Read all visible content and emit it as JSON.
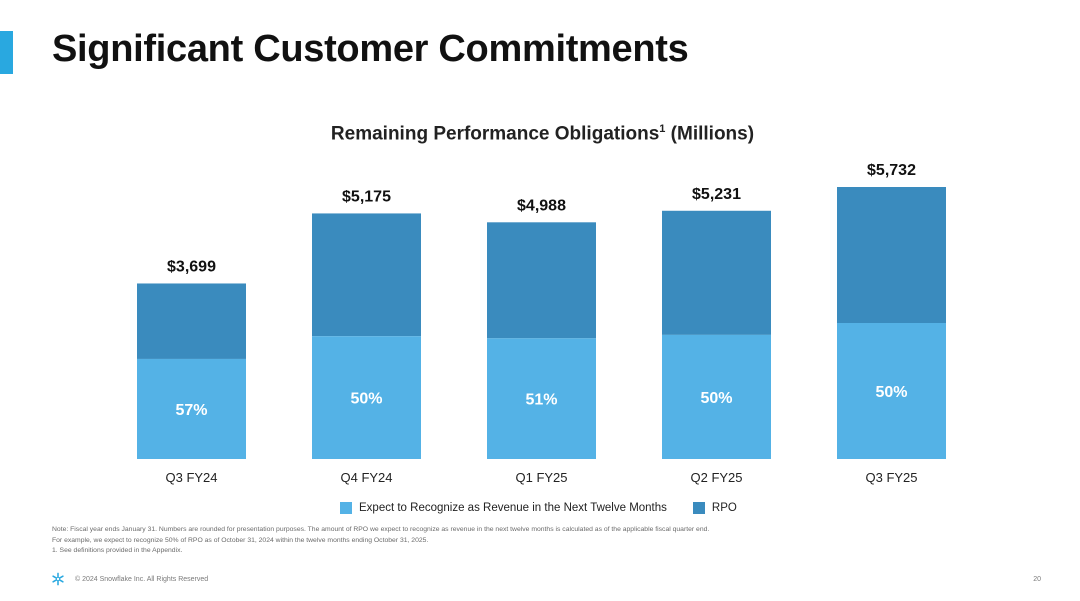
{
  "slide": {
    "title": "Significant Customer Commitments"
  },
  "chart_data": {
    "type": "bar",
    "stacked": true,
    "title": "Remaining Performance Obligations",
    "title_superscript": "1",
    "title_suffix": "(Millions)",
    "categories": [
      "Q3 FY24",
      "Q4 FY24",
      "Q1 FY25",
      "Q2 FY25",
      "Q3 FY25"
    ],
    "totals": [
      3699,
      5175,
      4988,
      5231,
      5732
    ],
    "total_labels": [
      "$3,699",
      "$5,175",
      "$4,988",
      "$5,231",
      "$5,732"
    ],
    "next_twelve_months_percent": [
      57,
      50,
      51,
      50,
      50
    ],
    "percent_labels": [
      "57%",
      "50%",
      "51%",
      "50%",
      "50%"
    ],
    "series": [
      {
        "name": "Expect to Recognize as Revenue in the Next Twelve Months",
        "color": "#54B2E6"
      },
      {
        "name": "RPO",
        "color": "#3A8BBE"
      }
    ],
    "xlabel": "",
    "ylabel": "",
    "grid": false,
    "legend_position": "bottom"
  },
  "footnote": {
    "line1": "Note: Fiscal year ends January 31. Numbers are rounded for presentation purposes. The amount of RPO we expect to recognize as revenue in the next twelve months is calculated as of the applicable fiscal quarter end.",
    "line2": "For example, we expect to recognize 50% of RPO as of October 31, 2024 within the twelve months ending October 31, 2025.",
    "line3": "1.  See definitions provided in the Appendix."
  },
  "footer": {
    "copyright": "© 2024 Snowflake Inc. All Rights Reserved",
    "page_number": "20",
    "logo_icon": "snowflake-logo-icon"
  },
  "colors": {
    "accent": "#29A8E0",
    "ntm_light": "#54B2E6",
    "rpo_dark": "#3A8BBE"
  }
}
